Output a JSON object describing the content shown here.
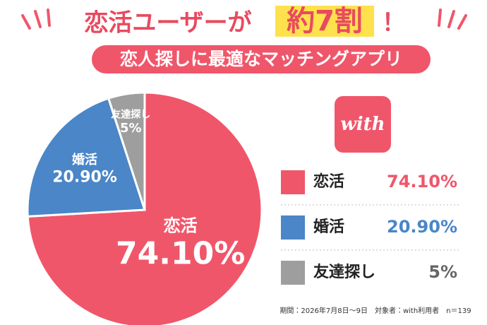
{
  "chart_data": {
    "type": "pie",
    "title_parts": [
      "恋活ユーザーが",
      "約7割",
      "！"
    ],
    "subtitle": "恋人探しに最適なマッチングアプリ",
    "logo": "with",
    "categories": [
      "恋活",
      "婚活",
      "友達探し"
    ],
    "values": [
      74.1,
      20.9,
      5
    ],
    "value_labels": [
      "74.10%",
      "20.90%",
      "5%"
    ],
    "colors": [
      "#f0566a",
      "#4a86c8",
      "#9e9e9e"
    ],
    "note": "期間：2026年7月8日〜9日　対象者：with利用者　n＝139"
  }
}
